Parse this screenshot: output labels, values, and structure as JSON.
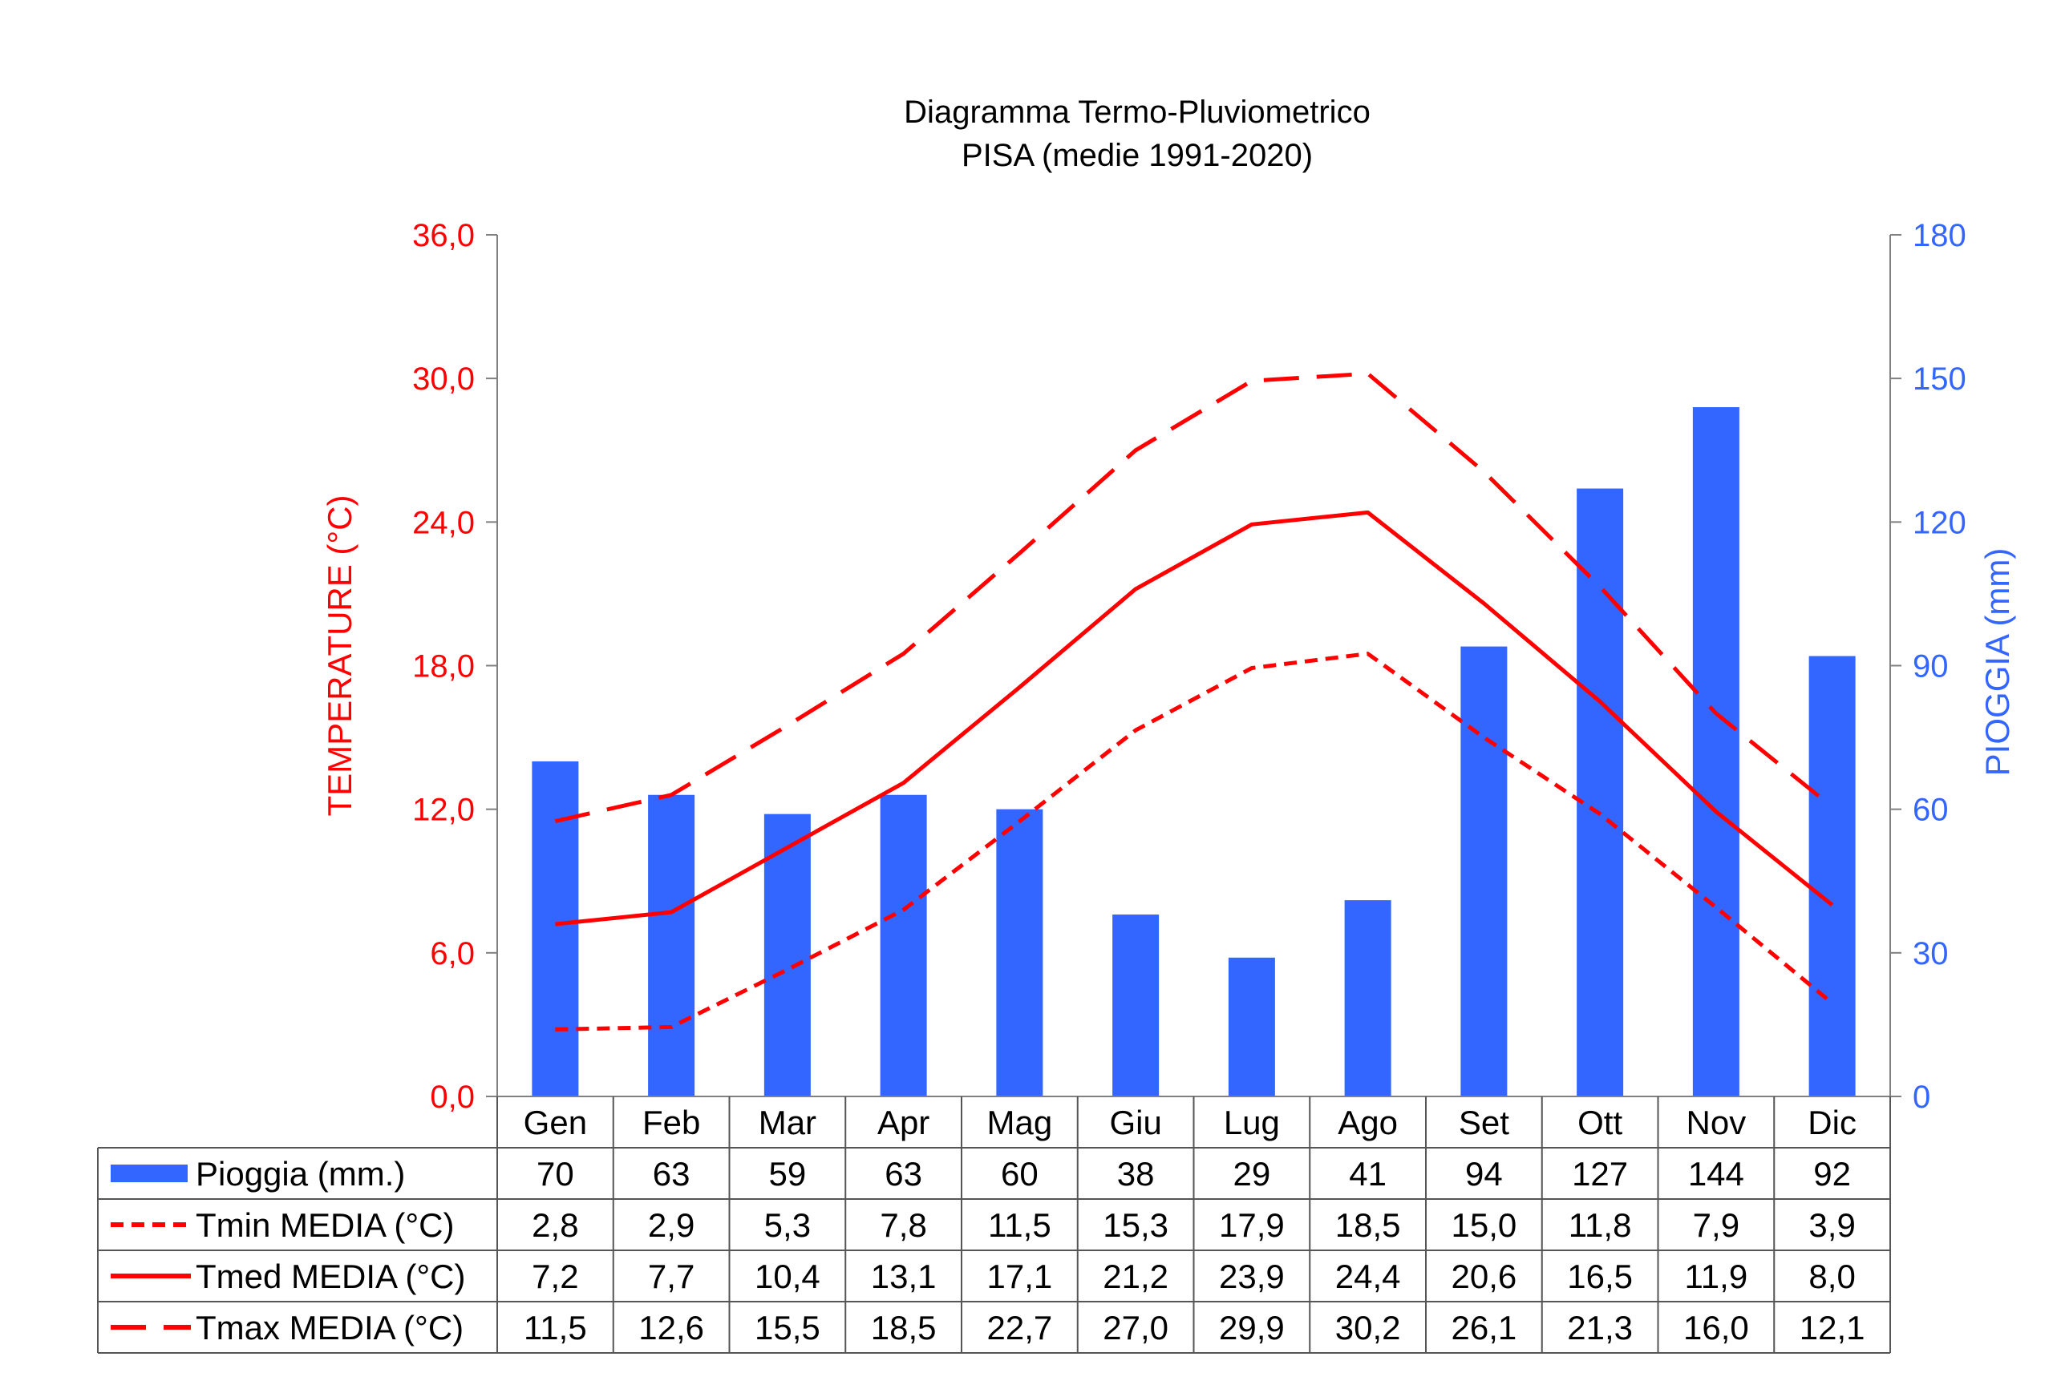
{
  "chart_data": {
    "type": "bar",
    "title": "Diagramma Termo-Pluviometrico",
    "subtitle": "PISA (medie 1991-2020)",
    "categories": [
      "Gen",
      "Feb",
      "Mar",
      "Apr",
      "Mag",
      "Giu",
      "Lug",
      "Ago",
      "Set",
      "Ott",
      "Nov",
      "Dic"
    ],
    "y_left": {
      "label": "TEMPERATURE (°C)",
      "range": [
        0,
        36
      ],
      "ticks": [
        "0,0",
        "6,0",
        "12,0",
        "18,0",
        "24,0",
        "30,0",
        "36,0"
      ],
      "color": "#ff0000"
    },
    "y_right": {
      "label": "PIOGGIA (mm)",
      "range": [
        0,
        180
      ],
      "ticks": [
        "0",
        "30",
        "60",
        "90",
        "120",
        "150",
        "180"
      ],
      "color": "#3366ff"
    },
    "grid": false,
    "legend_placement": "data-table-left",
    "series": [
      {
        "name": "Pioggia (mm.)",
        "kind": "bar",
        "axis": "right",
        "color": "#3366ff",
        "values": [
          70,
          63,
          59,
          63,
          60,
          38,
          29,
          41,
          94,
          127,
          144,
          92
        ],
        "labels": [
          "70",
          "63",
          "59",
          "63",
          "60",
          "38",
          "29",
          "41",
          "94",
          "127",
          "144",
          "92"
        ]
      },
      {
        "name": "Tmin MEDIA (°C)",
        "kind": "line",
        "style": "short-dash",
        "axis": "left",
        "color": "#ff0000",
        "values": [
          2.8,
          2.9,
          5.3,
          7.8,
          11.5,
          15.3,
          17.9,
          18.5,
          15.0,
          11.8,
          7.9,
          3.9
        ],
        "labels": [
          "2,8",
          "2,9",
          "5,3",
          "7,8",
          "11,5",
          "15,3",
          "17,9",
          "18,5",
          "15,0",
          "11,8",
          "7,9",
          "3,9"
        ]
      },
      {
        "name": "Tmed MEDIA (°C)",
        "kind": "line",
        "style": "solid",
        "axis": "left",
        "color": "#ff0000",
        "values": [
          7.2,
          7.7,
          10.4,
          13.1,
          17.1,
          21.2,
          23.9,
          24.4,
          20.6,
          16.5,
          11.9,
          8.0
        ],
        "labels": [
          "7,2",
          "7,7",
          "10,4",
          "13,1",
          "17,1",
          "21,2",
          "23,9",
          "24,4",
          "20,6",
          "16,5",
          "11,9",
          "8,0"
        ]
      },
      {
        "name": "Tmax MEDIA (°C)",
        "kind": "line",
        "style": "long-dash",
        "axis": "left",
        "color": "#ff0000",
        "values": [
          11.5,
          12.6,
          15.5,
          18.5,
          22.7,
          27.0,
          29.9,
          30.2,
          26.1,
          21.3,
          16.0,
          12.1
        ],
        "labels": [
          "11,5",
          "12,6",
          "15,5",
          "18,5",
          "22,7",
          "27,0",
          "29,9",
          "30,2",
          "26,1",
          "21,3",
          "16,0",
          "12,1"
        ]
      }
    ]
  }
}
